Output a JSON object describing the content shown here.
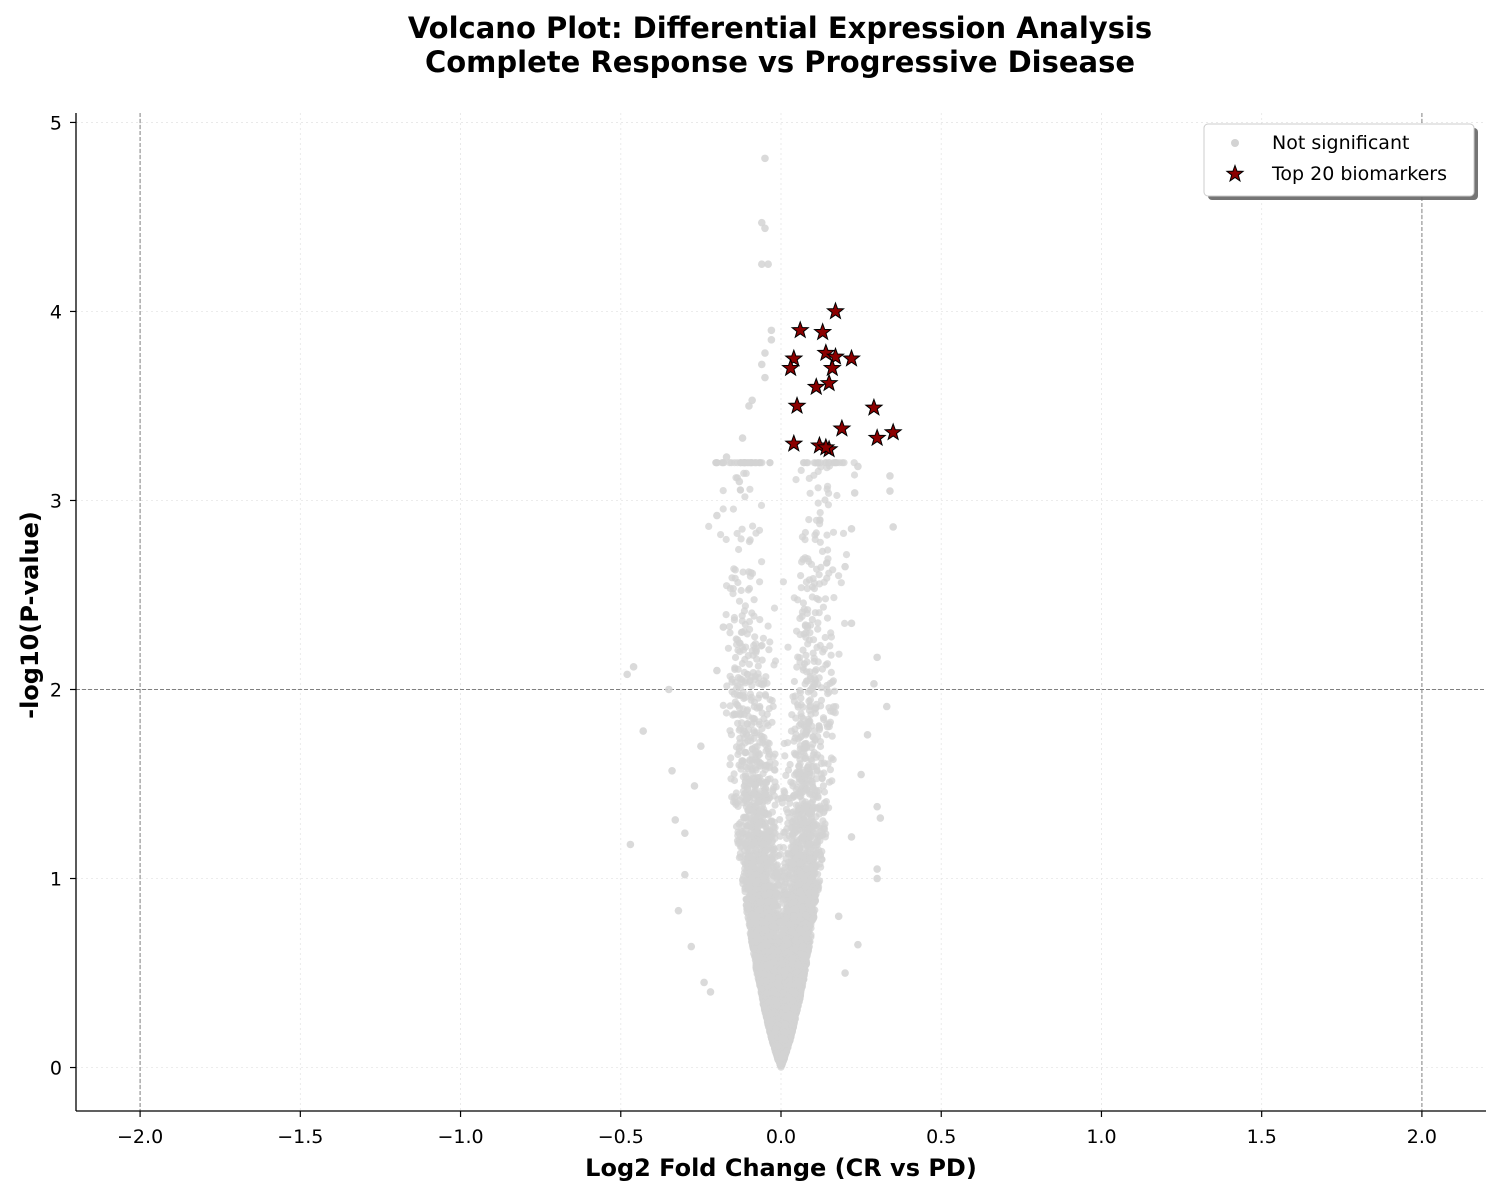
{
  "chart_data": {
    "type": "scatter",
    "title_line1": "Volcano Plot: Differential Expression Analysis",
    "title_line2": "Complete Response vs Progressive Disease",
    "xlabel": "Log2 Fold Change (CR vs PD)",
    "ylabel": "-log10(P-value)",
    "xlim": [
      -2.2,
      2.2
    ],
    "ylim": [
      -0.23,
      5.05
    ],
    "xticks": [
      -2.0,
      -1.5,
      -1.0,
      -0.5,
      0.0,
      0.5,
      1.0,
      1.5,
      2.0
    ],
    "xtick_labels": [
      "−2.0",
      "−1.5",
      "−1.0",
      "−0.5",
      "0.0",
      "0.5",
      "1.0",
      "1.5",
      "2.0"
    ],
    "yticks": [
      0,
      1,
      2,
      3,
      4,
      5
    ],
    "ytick_labels": [
      "0",
      "1",
      "2",
      "3",
      "4",
      "5"
    ],
    "grid": true,
    "threshold_lines": {
      "y": 2.0,
      "x": [
        -2.0,
        2.0
      ]
    },
    "legend_position": "top-right",
    "colors": {
      "not_significant": "#d3d3d3",
      "biomarker_fill": "#8b0000",
      "biomarker_edge": "#000000",
      "threshold": "#808080",
      "grid": "#e6e6e6"
    },
    "series": [
      {
        "name": "Not significant",
        "marker": "circle",
        "approx_point_count": 6000,
        "x_spread_sd_near_zero": 0.06,
        "outliers": [
          {
            "x": -0.05,
            "y": 4.81
          },
          {
            "x": -0.06,
            "y": 4.47
          },
          {
            "x": -0.05,
            "y": 4.44
          },
          {
            "x": -0.06,
            "y": 4.25
          },
          {
            "x": -0.04,
            "y": 4.25
          },
          {
            "x": -0.03,
            "y": 3.9
          },
          {
            "x": -0.03,
            "y": 3.85
          },
          {
            "x": -0.05,
            "y": 3.78
          },
          {
            "x": -0.06,
            "y": 3.72
          },
          {
            "x": -0.05,
            "y": 3.65
          },
          {
            "x": -0.1,
            "y": 3.5
          },
          {
            "x": -0.09,
            "y": 3.53
          },
          {
            "x": -0.12,
            "y": 3.33
          },
          {
            "x": -0.17,
            "y": 3.23
          },
          {
            "x": -0.13,
            "y": 3.1
          },
          {
            "x": -0.2,
            "y": 2.92
          },
          {
            "x": 0.24,
            "y": 3.18
          },
          {
            "x": 0.34,
            "y": 3.13
          },
          {
            "x": 0.34,
            "y": 3.05
          },
          {
            "x": 0.35,
            "y": 2.86
          },
          {
            "x": 0.23,
            "y": 3.04
          },
          {
            "x": 0.22,
            "y": 2.85
          },
          {
            "x": 0.2,
            "y": 2.65
          },
          {
            "x": 0.22,
            "y": 2.35
          },
          {
            "x": 0.3,
            "y": 2.17
          },
          {
            "x": 0.29,
            "y": 2.03
          },
          {
            "x": 0.33,
            "y": 1.91
          },
          {
            "x": -0.46,
            "y": 2.12
          },
          {
            "x": -0.48,
            "y": 2.08
          },
          {
            "x": -0.35,
            "y": 2.0
          },
          {
            "x": -0.43,
            "y": 1.78
          },
          {
            "x": -0.34,
            "y": 1.57
          },
          {
            "x": -0.33,
            "y": 1.31
          },
          {
            "x": -0.3,
            "y": 1.24
          },
          {
            "x": -0.47,
            "y": 1.18
          },
          {
            "x": -0.32,
            "y": 0.83
          },
          {
            "x": -0.28,
            "y": 0.64
          },
          {
            "x": -0.3,
            "y": 1.02
          },
          {
            "x": 0.3,
            "y": 1.38
          },
          {
            "x": 0.31,
            "y": 1.32
          },
          {
            "x": 0.3,
            "y": 1.05
          },
          {
            "x": 0.3,
            "y": 1.0
          },
          {
            "x": 0.24,
            "y": 0.65
          },
          {
            "x": 0.2,
            "y": 0.5
          },
          {
            "x": -0.24,
            "y": 0.45
          },
          {
            "x": -0.22,
            "y": 0.4
          },
          {
            "x": 0.18,
            "y": 0.8
          },
          {
            "x": -0.27,
            "y": 1.49
          },
          {
            "x": -0.25,
            "y": 1.7
          },
          {
            "x": -0.18,
            "y": 2.33
          },
          {
            "x": -0.2,
            "y": 2.1
          },
          {
            "x": 0.27,
            "y": 1.76
          },
          {
            "x": 0.25,
            "y": 1.55
          },
          {
            "x": 0.22,
            "y": 1.22
          }
        ]
      },
      {
        "name": "Top 20 biomarkers",
        "marker": "star",
        "points": [
          {
            "x": 0.17,
            "y": 4.0
          },
          {
            "x": 0.06,
            "y": 3.9
          },
          {
            "x": 0.13,
            "y": 3.89
          },
          {
            "x": 0.14,
            "y": 3.78
          },
          {
            "x": 0.17,
            "y": 3.76
          },
          {
            "x": 0.22,
            "y": 3.75
          },
          {
            "x": 0.04,
            "y": 3.75
          },
          {
            "x": 0.03,
            "y": 3.7
          },
          {
            "x": 0.16,
            "y": 3.7
          },
          {
            "x": 0.15,
            "y": 3.62
          },
          {
            "x": 0.11,
            "y": 3.6
          },
          {
            "x": 0.05,
            "y": 3.5
          },
          {
            "x": 0.29,
            "y": 3.49
          },
          {
            "x": 0.19,
            "y": 3.38
          },
          {
            "x": 0.35,
            "y": 3.36
          },
          {
            "x": 0.3,
            "y": 3.33
          },
          {
            "x": 0.04,
            "y": 3.3
          },
          {
            "x": 0.12,
            "y": 3.29
          },
          {
            "x": 0.15,
            "y": 3.27
          },
          {
            "x": 0.14,
            "y": 3.28
          }
        ]
      }
    ]
  }
}
